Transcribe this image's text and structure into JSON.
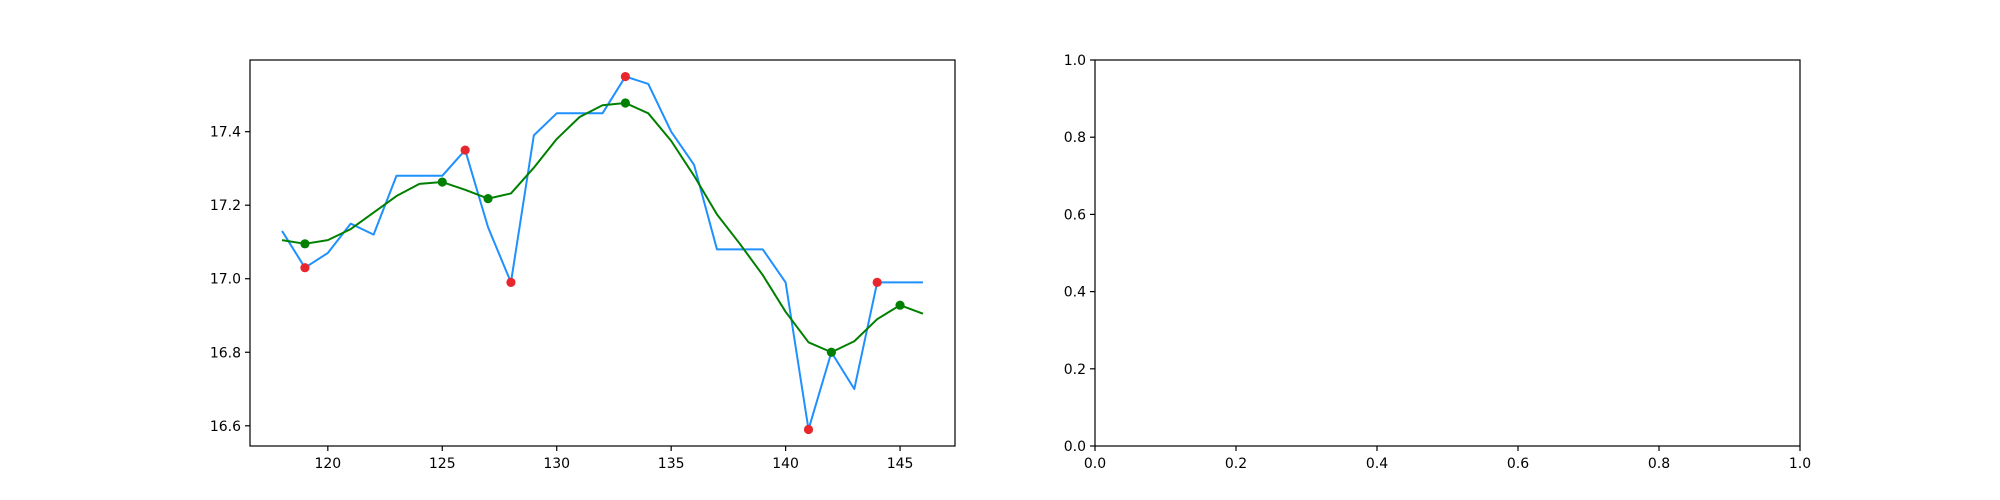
{
  "chart_data": [
    {
      "type": "line",
      "xlim": [
        116.6,
        147.4
      ],
      "ylim": [
        16.545,
        17.595
      ],
      "x_ticks": [
        120,
        125,
        130,
        135,
        140,
        145
      ],
      "y_ticks": [
        16.6,
        16.8,
        17.0,
        17.2,
        17.4
      ],
      "x_tick_labels": [
        "120",
        "125",
        "130",
        "135",
        "140",
        "145"
      ],
      "y_tick_labels": [
        "16.6",
        "16.8",
        "17.0",
        "17.2",
        "17.4"
      ],
      "series": [
        {
          "kind": "line",
          "color": "#1e90ff",
          "x": [
            118,
            119,
            120,
            121,
            122,
            123,
            124,
            125,
            126,
            127,
            128,
            129,
            130,
            131,
            132,
            133,
            134,
            135,
            136,
            137,
            138,
            139,
            140,
            141,
            142,
            143,
            144,
            145,
            146
          ],
          "y": [
            17.13,
            17.03,
            17.07,
            17.15,
            17.12,
            17.28,
            17.28,
            17.28,
            17.35,
            17.14,
            16.99,
            17.39,
            17.45,
            17.45,
            17.45,
            17.55,
            17.53,
            17.4,
            17.31,
            17.08,
            17.08,
            17.08,
            16.99,
            16.59,
            16.8,
            16.7,
            16.99,
            16.99,
            16.99
          ]
        },
        {
          "kind": "line",
          "color": "#008000",
          "x": [
            118,
            119,
            120,
            121,
            122,
            123,
            124,
            125,
            126,
            127,
            128,
            129,
            130,
            131,
            132,
            133,
            134,
            135,
            136,
            137,
            138,
            139,
            140,
            141,
            142,
            143,
            144,
            145,
            146
          ],
          "y": [
            17.105,
            17.095,
            17.105,
            17.135,
            17.18,
            17.225,
            17.258,
            17.263,
            17.242,
            17.218,
            17.232,
            17.302,
            17.38,
            17.44,
            17.472,
            17.478,
            17.45,
            17.375,
            17.28,
            17.175,
            17.095,
            17.01,
            16.91,
            16.827,
            16.8,
            16.83,
            16.89,
            16.928,
            16.905
          ]
        },
        {
          "kind": "scatter",
          "color": "#e8262e",
          "x": [
            119,
            126,
            128,
            133,
            141,
            144
          ],
          "y": [
            17.03,
            17.35,
            16.99,
            17.55,
            16.59,
            16.99
          ]
        },
        {
          "kind": "scatter",
          "color": "#008000",
          "x": [
            119,
            125,
            127,
            133,
            142,
            145
          ],
          "y": [
            17.095,
            17.263,
            17.218,
            17.478,
            16.8,
            16.928
          ]
        }
      ]
    },
    {
      "type": "line",
      "xlim": [
        0,
        1
      ],
      "ylim": [
        0,
        1
      ],
      "x_ticks": [
        0,
        0.2,
        0.4,
        0.6,
        0.8,
        1.0
      ],
      "y_ticks": [
        0,
        0.2,
        0.4,
        0.6,
        0.8,
        1.0
      ],
      "x_tick_labels": [
        "0.0",
        "0.2",
        "0.4",
        "0.6",
        "0.8",
        "1.0"
      ],
      "y_tick_labels": [
        "0.0",
        "0.2",
        "0.4",
        "0.6",
        "0.8",
        "1.0"
      ],
      "series": []
    }
  ]
}
